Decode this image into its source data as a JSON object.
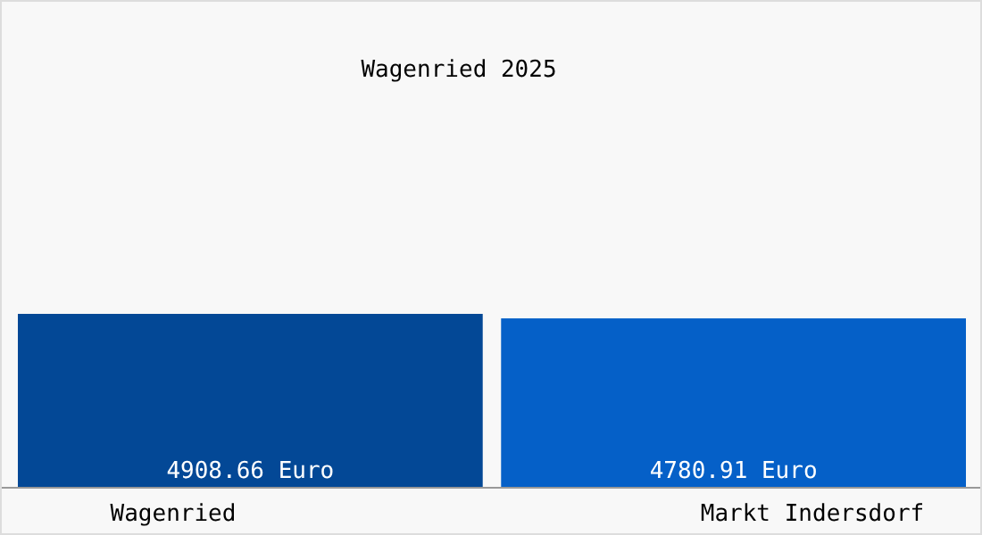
{
  "chart_data": {
    "type": "bar",
    "title": "Wagenried 2025",
    "categories": [
      "Wagenried",
      "Markt Indersdorf"
    ],
    "values": [
      4908.66,
      4780.91
    ],
    "colors": [
      "#034896",
      "#0560c8"
    ],
    "value_labels": [
      "4908.66 Euro",
      "4780.91 Euro"
    ]
  }
}
